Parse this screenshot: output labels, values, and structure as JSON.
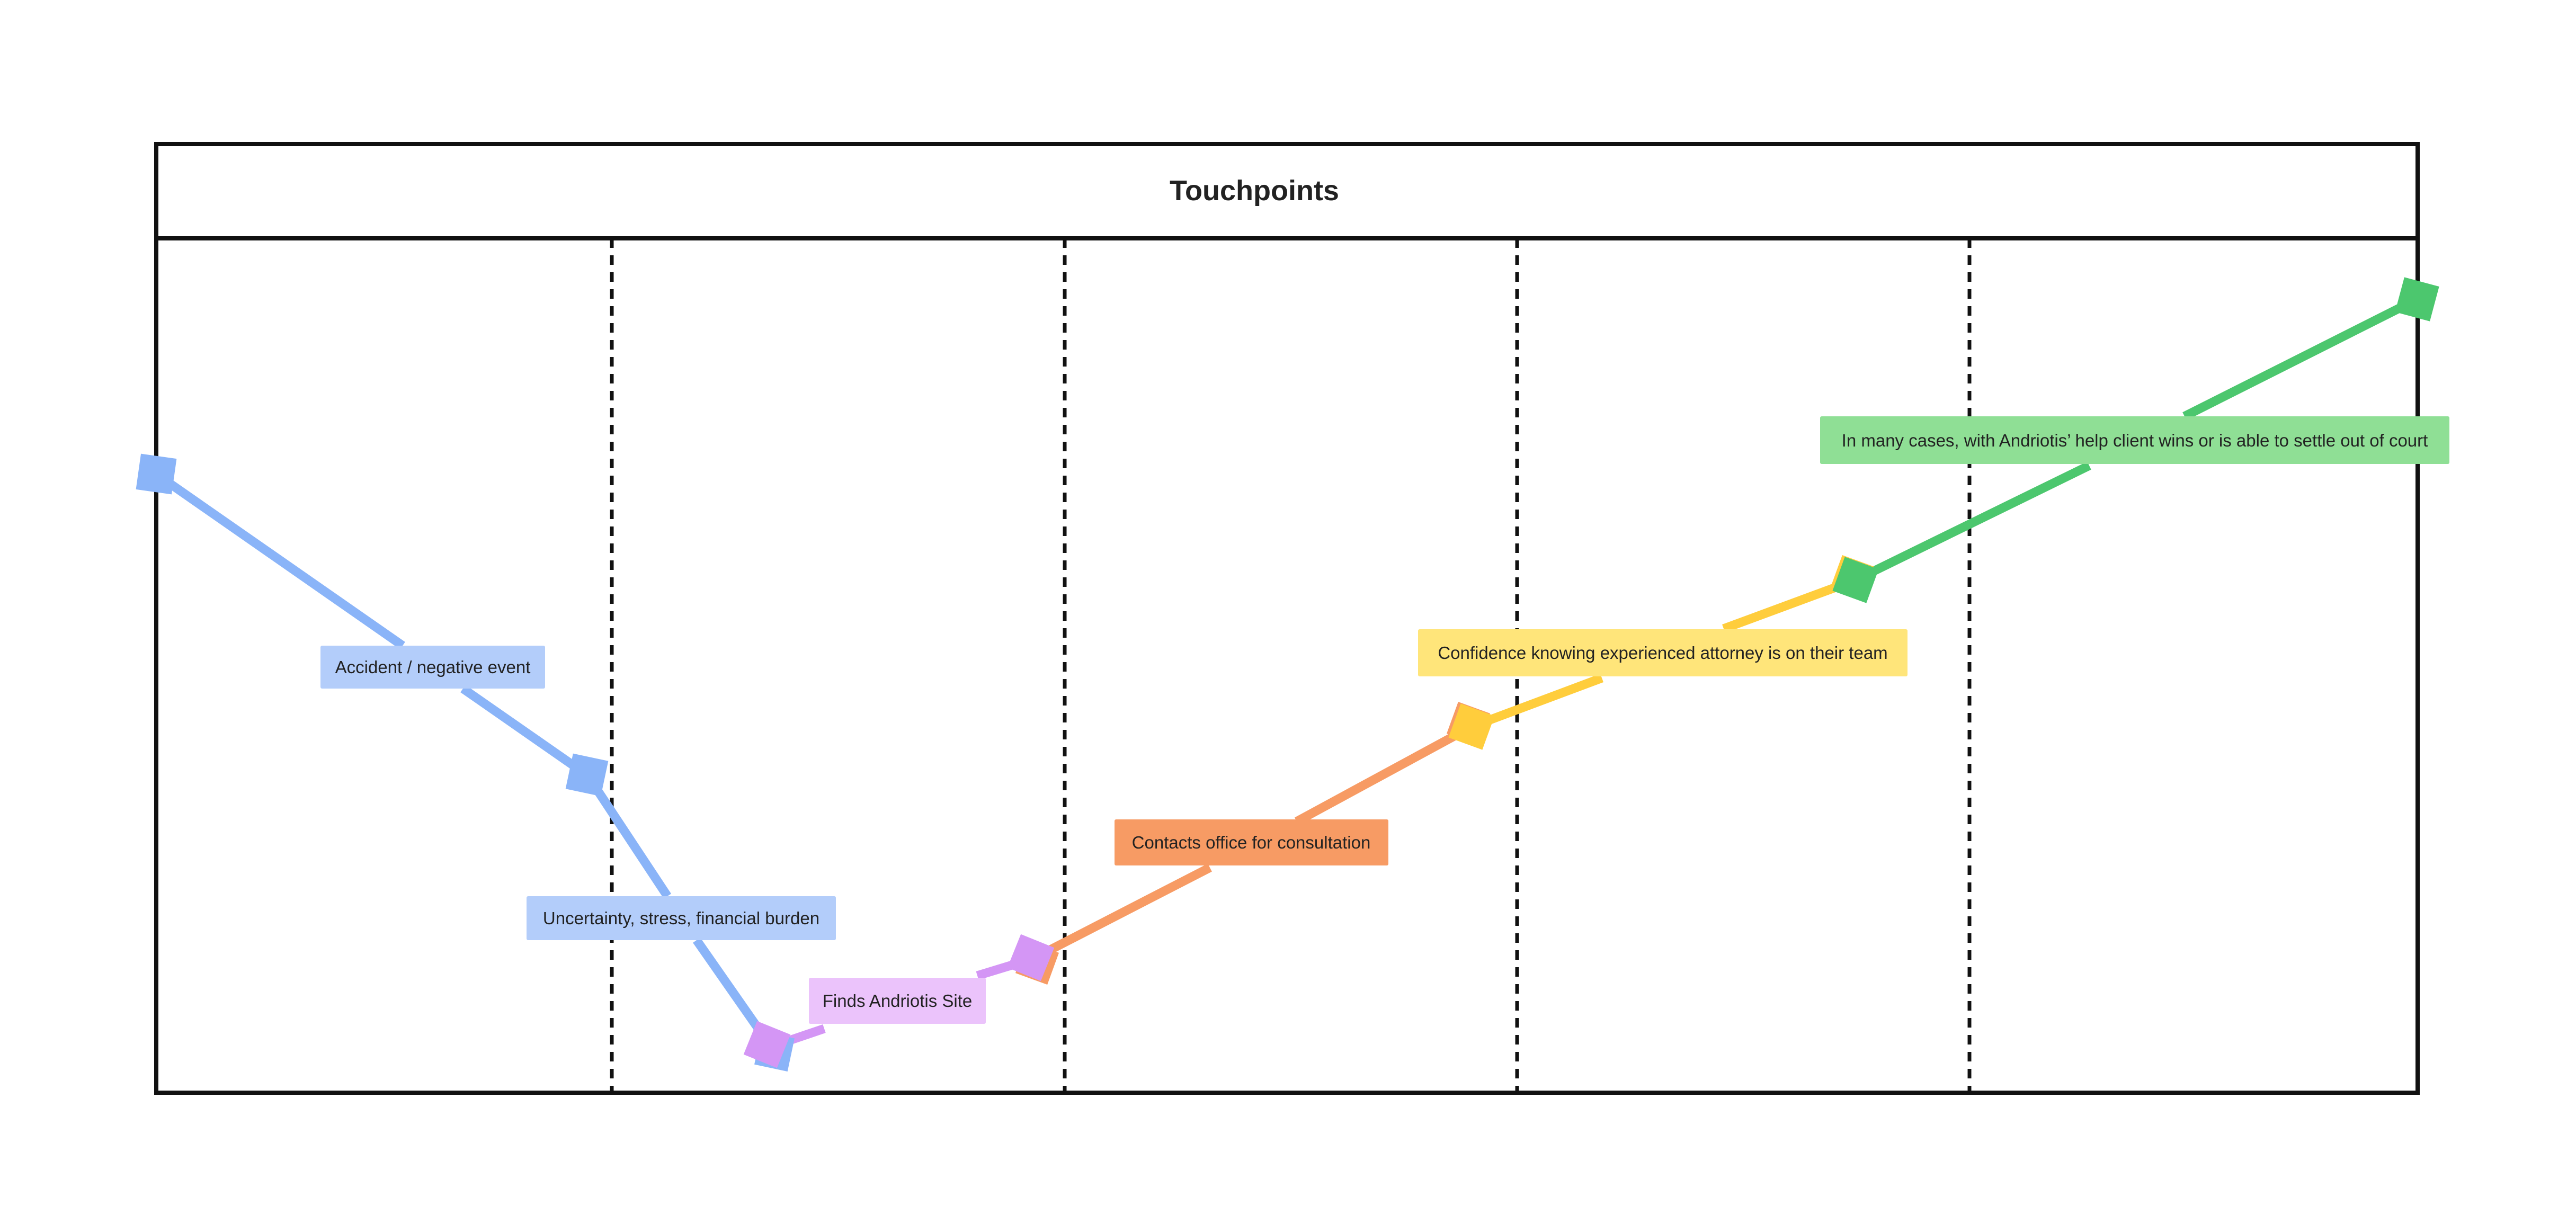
{
  "header": {
    "title": "Touchpoints"
  },
  "colors": {
    "blue": "#8ab4f8",
    "blue_label": "#b3cdfa",
    "purple": "#d496f5",
    "purple_label": "#ebc3fb",
    "orange": "#f79b64",
    "orange_label": "#f79b64",
    "yellow": "#ffcd3c",
    "yellow_label": "#ffe57a",
    "green": "#4cc76e",
    "green_label": "#8fdf95"
  },
  "stages": [
    {
      "label": "Accident / negative event",
      "color": "blue"
    },
    {
      "label": "Uncertainty, stress, financial burden",
      "color": "blue"
    },
    {
      "label": "Finds Andriotis Site",
      "color": "purple"
    },
    {
      "label": "Contacts office for consultation",
      "color": "orange"
    },
    {
      "label": "Confidence knowing experienced attorney is on their team",
      "color": "yellow"
    },
    {
      "label": "In many cases, with Andriotis’ help client wins or is able to settle out of court",
      "color": "green"
    }
  ]
}
